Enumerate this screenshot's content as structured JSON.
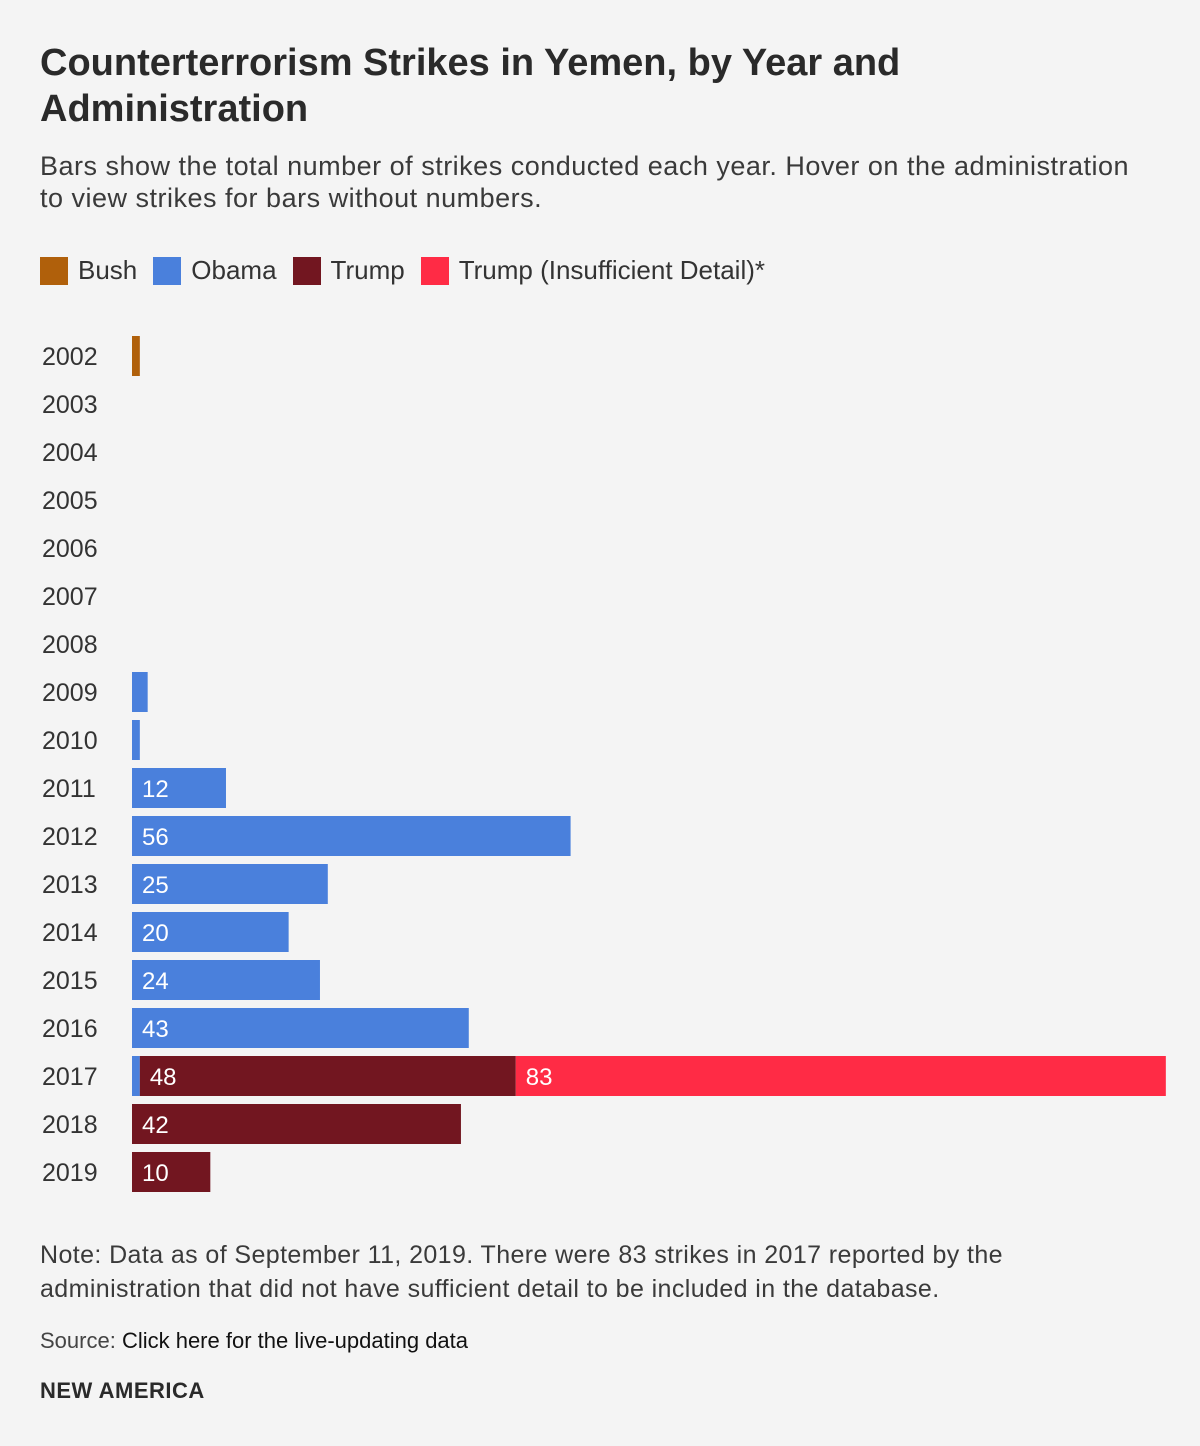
{
  "header": {
    "title": "Counterterrorism Strikes in Yemen, by Year and Administration",
    "subtitle": "Bars show the total number of strikes conducted each year. Hover on the administration to view strikes for bars without numbers."
  },
  "legend": [
    {
      "label": "Bush",
      "color": "#b0600b"
    },
    {
      "label": "Obama",
      "color": "#4a80dc"
    },
    {
      "label": "Trump",
      "color": "#721620"
    },
    {
      "label": "Trump (Insufficient Detail)*",
      "color": "#ff2b45"
    }
  ],
  "chart_data": {
    "type": "bar",
    "orientation": "horizontal",
    "stacked": true,
    "title": "Counterterrorism Strikes in Yemen, by Year and Administration",
    "xlabel": "",
    "ylabel": "",
    "xlim": [
      0,
      131
    ],
    "categories": [
      "2002",
      "2003",
      "2004",
      "2005",
      "2006",
      "2007",
      "2008",
      "2009",
      "2010",
      "2011",
      "2012",
      "2013",
      "2014",
      "2015",
      "2016",
      "2017",
      "2018",
      "2019"
    ],
    "series": [
      {
        "name": "Bush",
        "color": "#b0600b",
        "values": [
          1,
          0,
          0,
          0,
          0,
          0,
          0,
          0,
          0,
          0,
          0,
          0,
          0,
          0,
          0,
          0,
          0,
          0
        ]
      },
      {
        "name": "Obama",
        "color": "#4a80dc",
        "values": [
          0,
          0,
          0,
          0,
          0,
          0,
          0,
          2,
          1,
          12,
          56,
          25,
          20,
          24,
          43,
          1,
          0,
          0
        ]
      },
      {
        "name": "Trump",
        "color": "#721620",
        "values": [
          0,
          0,
          0,
          0,
          0,
          0,
          0,
          0,
          0,
          0,
          0,
          0,
          0,
          0,
          0,
          48,
          42,
          10
        ]
      },
      {
        "name": "Trump (Insufficient Detail)*",
        "color": "#ff2b45",
        "values": [
          0,
          0,
          0,
          0,
          0,
          0,
          0,
          0,
          0,
          0,
          0,
          0,
          0,
          0,
          0,
          83,
          0,
          0
        ]
      }
    ],
    "label_min_value": 5
  },
  "footer": {
    "note": "Note: Data as of September 11, 2019. There were 83 strikes in 2017 reported by the administration that did not have sufficient detail to be included in the database.",
    "source_label": "Source: ",
    "source_link": "Click here for the live-updating data",
    "brand": "NEW AMERICA"
  }
}
